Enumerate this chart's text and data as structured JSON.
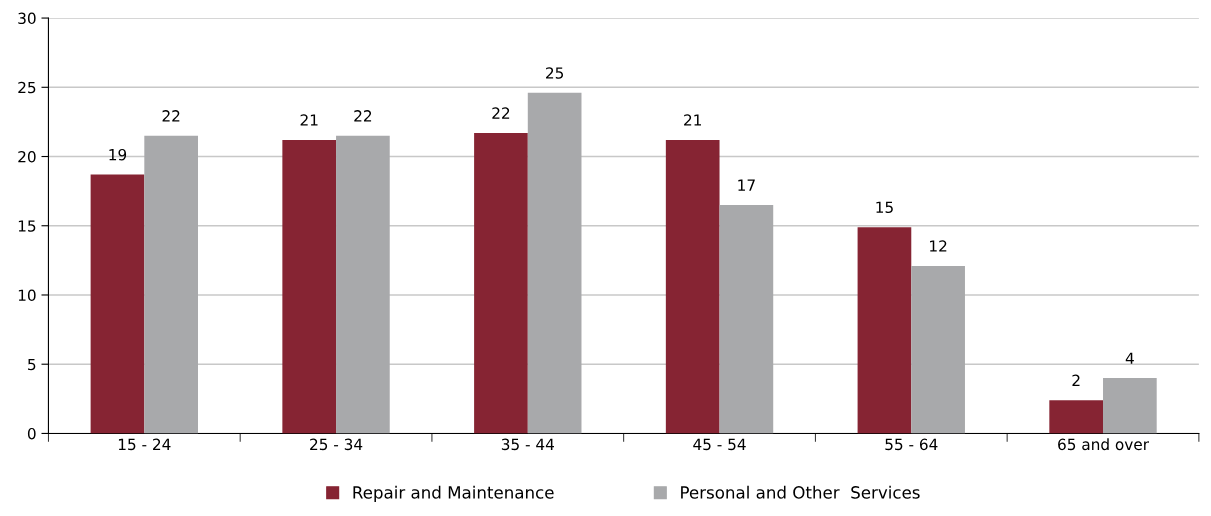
{
  "chart_data": {
    "type": "bar",
    "categories": [
      "15 - 24",
      "25 - 34",
      "35 - 44",
      "45 - 54",
      "55 - 64",
      "65 and over"
    ],
    "series": [
      {
        "name": "Repair and Maintenance",
        "color": "#862433",
        "values": [
          18.7,
          21.2,
          21.7,
          21.2,
          14.9,
          2.4
        ],
        "value_labels": [
          "19",
          "21",
          "22",
          "21",
          "15",
          "2"
        ]
      },
      {
        "name": "Personal and Other  Services",
        "color": "#a8a9ab",
        "values": [
          21.5,
          21.5,
          24.6,
          16.5,
          12.1,
          4.0
        ],
        "value_labels": [
          "22",
          "22",
          "25",
          "17",
          "12",
          "4"
        ]
      }
    ],
    "ylim": [
      0,
      30
    ],
    "yticks": [
      0,
      5,
      10,
      15,
      20,
      25,
      30
    ],
    "grid": "y",
    "legend": "bottom"
  }
}
